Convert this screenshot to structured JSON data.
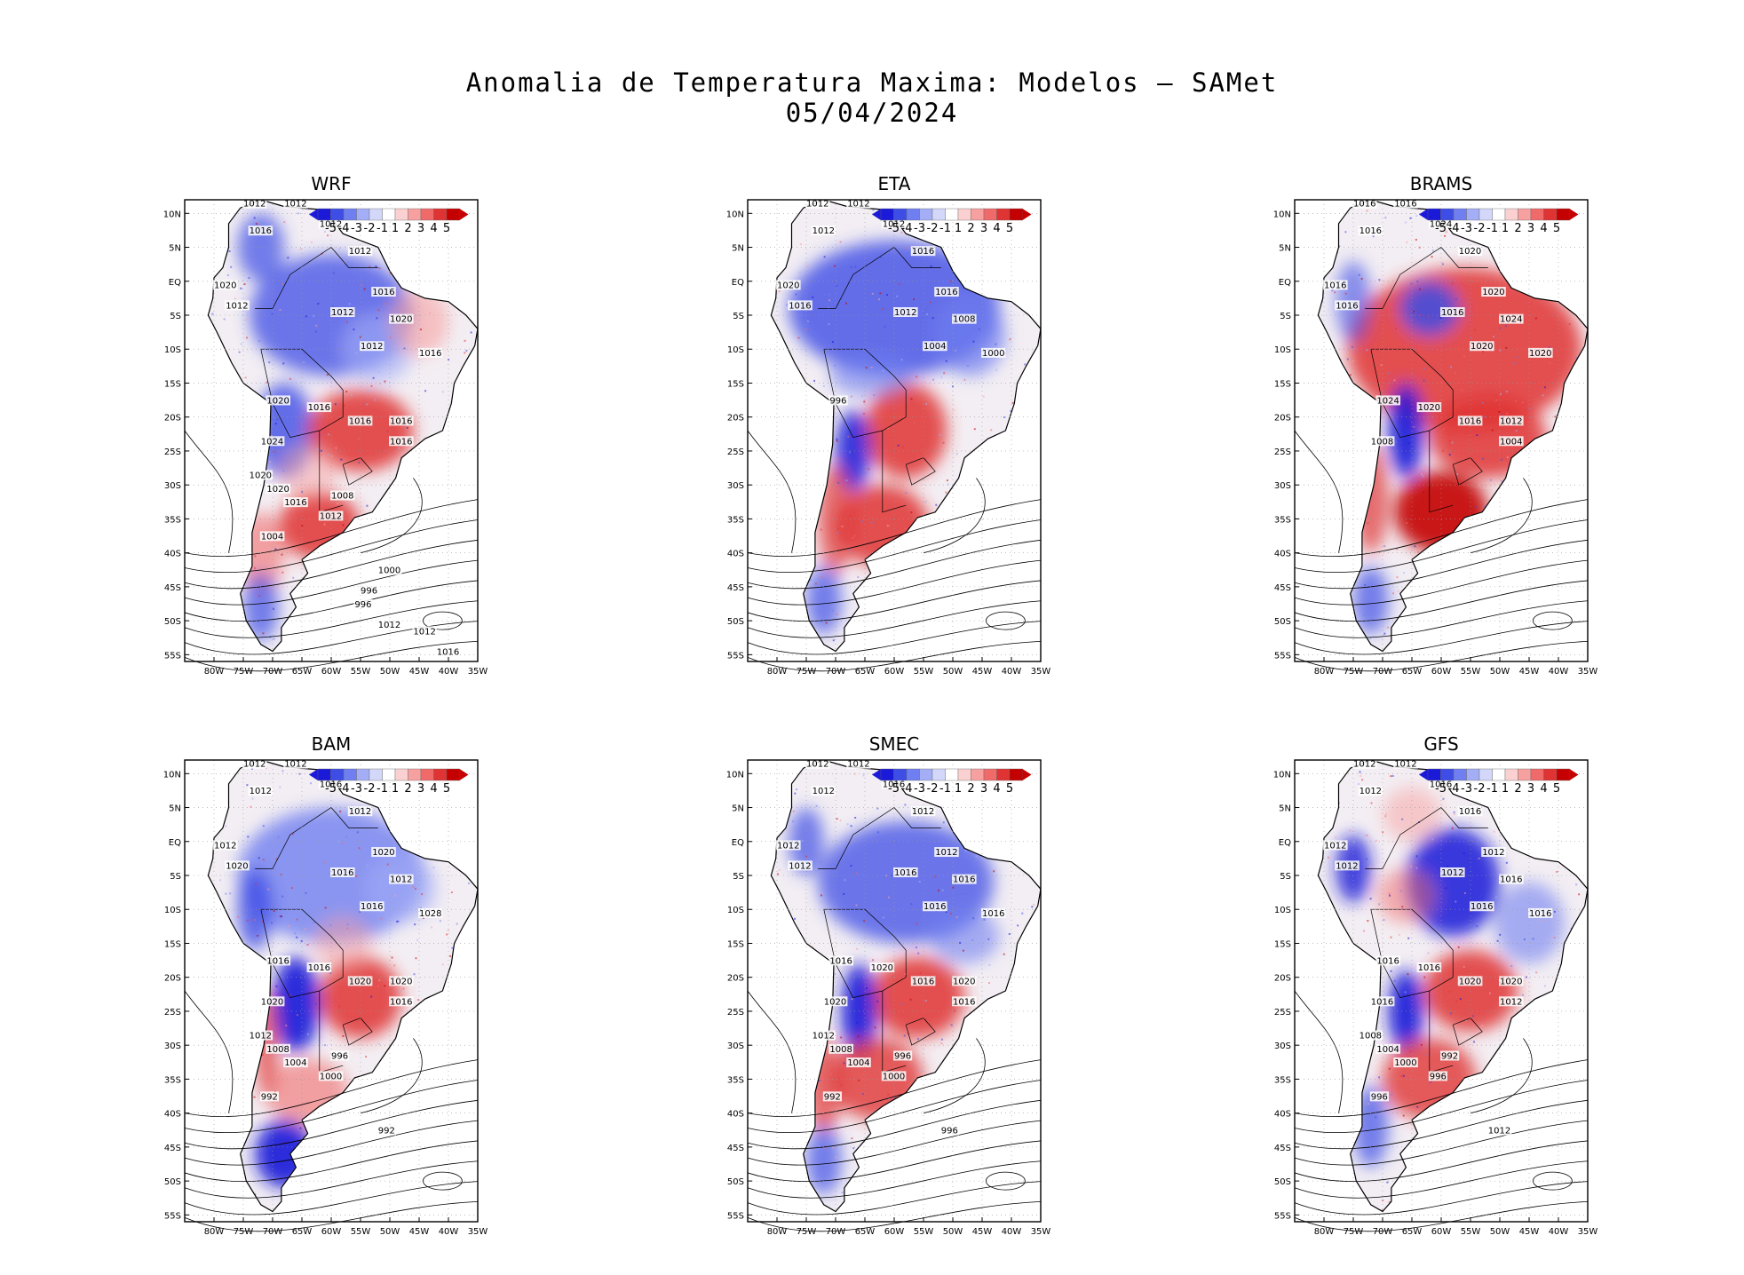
{
  "title": {
    "line1": "Anomalia de Temperatura Maxima: Modelos – SAMet",
    "line2": "05/04/2024"
  },
  "colorbar": {
    "labels": [
      "-5",
      "-4",
      "-3",
      "-2",
      "-1",
      "1",
      "2",
      "3",
      "4",
      "5"
    ],
    "colors": [
      "#1a1ad8",
      "#3d4de6",
      "#6f7ef0",
      "#a3aef6",
      "#d3d8fb",
      "#ffffff",
      "#fbd0d0",
      "#f7a0a0",
      "#f06a6a",
      "#e03333",
      "#c40000"
    ]
  },
  "axes": {
    "lat_labels": [
      "10N",
      "5N",
      "EQ",
      "5S",
      "10S",
      "15S",
      "20S",
      "25S",
      "30S",
      "35S",
      "40S",
      "45S",
      "50S",
      "55S"
    ],
    "lon_labels": [
      "80W",
      "75W",
      "70W",
      "65W",
      "60W",
      "55W",
      "50W",
      "45W",
      "40W",
      "35W"
    ]
  },
  "panels": [
    {
      "name": "WRF",
      "isobars": [
        "1012",
        "1012",
        "1016",
        "1012",
        "1012",
        "1016",
        "1020",
        "1012",
        "1012",
        "1020",
        "1012",
        "1016",
        "1020",
        "1016",
        "1016",
        "1016",
        "1024",
        "1016",
        "1020",
        "1020",
        "1016",
        "1012",
        "1008",
        "1004",
        "1000",
        "996",
        "996",
        "1012",
        "1012",
        "1016"
      ]
    },
    {
      "name": "ETA",
      "isobars": [
        "1012",
        "1012",
        "1012",
        "1012",
        "1016",
        "1016",
        "1020",
        "1016",
        "1012",
        "1008",
        "1004",
        "1000",
        "996"
      ]
    },
    {
      "name": "BRAMS",
      "isobars": [
        "1016",
        "1016",
        "1016",
        "1024",
        "1020",
        "1020",
        "1016",
        "1016",
        "1016",
        "1024",
        "1020",
        "1020",
        "1024",
        "1020",
        "1016",
        "1012",
        "1008",
        "1004"
      ]
    },
    {
      "name": "BAM",
      "isobars": [
        "1012",
        "1012",
        "1012",
        "1016",
        "1012",
        "1020",
        "1012",
        "1020",
        "1016",
        "1012",
        "1016",
        "1028",
        "1016",
        "1016",
        "1020",
        "1020",
        "1020",
        "1016",
        "1012",
        "1008",
        "1004",
        "1000",
        "996",
        "992",
        "992"
      ]
    },
    {
      "name": "SMEC",
      "isobars": [
        "1012",
        "1012",
        "1012",
        "1016",
        "1012",
        "1012",
        "1012",
        "1012",
        "1016",
        "1016",
        "1016",
        "1016",
        "1016",
        "1020",
        "1016",
        "1020",
        "1020",
        "1016",
        "1012",
        "1008",
        "1004",
        "1000",
        "996",
        "992",
        "996"
      ]
    },
    {
      "name": "GFS",
      "isobars": [
        "1012",
        "1012",
        "1012",
        "1016",
        "1016",
        "1012",
        "1012",
        "1012",
        "1012",
        "1016",
        "1016",
        "1016",
        "1016",
        "1016",
        "1020",
        "1020",
        "1016",
        "1012",
        "1008",
        "1004",
        "1000",
        "996",
        "992",
        "996",
        "1012"
      ]
    }
  ]
}
